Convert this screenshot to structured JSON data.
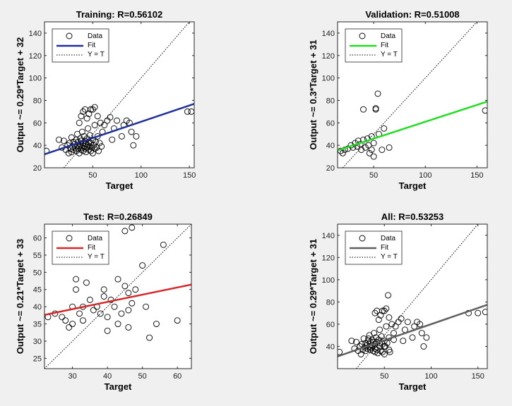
{
  "chart_data": [
    {
      "type": "scatter",
      "title": "Training: R=0.56102",
      "xlabel": "Target",
      "ylabel": "Output ~= 0.29*Target + 32",
      "xlim": [
        0,
        155
      ],
      "ylim": [
        20,
        150
      ],
      "xticks": [
        50,
        100,
        150
      ],
      "yticks": [
        20,
        40,
        60,
        80,
        100,
        120,
        140
      ],
      "grid": false,
      "legend_position": "top-left",
      "legend": [
        "Data",
        "Fit",
        "Y = T"
      ],
      "fit": {
        "slope": 0.29,
        "intercept": 32,
        "color": "#1f2f9c"
      },
      "points": [
        [
          2,
          35
        ],
        [
          15,
          45
        ],
        [
          18,
          38
        ],
        [
          20,
          44
        ],
        [
          22,
          36
        ],
        [
          24,
          40
        ],
        [
          25,
          33
        ],
        [
          26,
          42
        ],
        [
          27,
          37
        ],
        [
          28,
          47
        ],
        [
          28,
          34
        ],
        [
          29,
          39
        ],
        [
          30,
          43
        ],
        [
          30,
          36
        ],
        [
          31,
          41
        ],
        [
          32,
          38
        ],
        [
          33,
          45
        ],
        [
          33,
          35
        ],
        [
          34,
          40
        ],
        [
          34,
          50
        ],
        [
          35,
          37
        ],
        [
          35,
          43
        ],
        [
          36,
          39
        ],
        [
          36,
          33
        ],
        [
          37,
          46
        ],
        [
          37,
          41
        ],
        [
          38,
          36
        ],
        [
          38,
          44
        ],
        [
          39,
          38
        ],
        [
          39,
          52
        ],
        [
          40,
          35
        ],
        [
          40,
          42
        ],
        [
          41,
          39
        ],
        [
          41,
          48
        ],
        [
          42,
          37
        ],
        [
          42,
          44
        ],
        [
          43,
          34
        ],
        [
          43,
          41
        ],
        [
          44,
          46
        ],
        [
          44,
          38
        ],
        [
          45,
          55
        ],
        [
          45,
          40
        ],
        [
          46,
          36
        ],
        [
          46,
          43
        ],
        [
          47,
          39
        ],
        [
          47,
          49
        ],
        [
          48,
          35
        ],
        [
          48,
          42
        ],
        [
          49,
          38
        ],
        [
          50,
          45
        ],
        [
          50,
          33
        ],
        [
          51,
          40
        ],
        [
          52,
          37
        ],
        [
          52,
          58
        ],
        [
          53,
          43
        ],
        [
          54,
          38
        ],
        [
          55,
          48
        ],
        [
          56,
          35
        ],
        [
          57,
          42
        ],
        [
          58,
          60
        ],
        [
          59,
          39
        ],
        [
          60,
          52
        ],
        [
          40,
          70
        ],
        [
          42,
          72
        ],
        [
          44,
          64
        ],
        [
          46,
          68
        ],
        [
          48,
          72
        ],
        [
          50,
          72
        ],
        [
          52,
          74
        ],
        [
          38,
          66
        ],
        [
          36,
          60
        ],
        [
          55,
          66
        ],
        [
          62,
          58
        ],
        [
          65,
          62
        ],
        [
          68,
          65
        ],
        [
          70,
          45
        ],
        [
          72,
          55
        ],
        [
          75,
          62
        ],
        [
          80,
          48
        ],
        [
          82,
          58
        ],
        [
          85,
          62
        ],
        [
          88,
          60
        ],
        [
          90,
          52
        ],
        [
          92,
          40
        ],
        [
          95,
          48
        ],
        [
          148,
          70
        ],
        [
          152,
          70
        ]
      ]
    },
    {
      "type": "scatter",
      "title": "Validation: R=0.51008",
      "xlabel": "Target",
      "ylabel": "Output ~= 0.3*Target + 31",
      "xlim": [
        15,
        160
      ],
      "ylim": [
        20,
        150
      ],
      "xticks": [
        50,
        100,
        150
      ],
      "yticks": [
        20,
        40,
        60,
        80,
        100,
        120,
        140
      ],
      "grid": false,
      "legend_position": "top-left",
      "legend": [
        "Data",
        "Fit",
        "Y = T"
      ],
      "fit": {
        "slope": 0.3,
        "intercept": 31,
        "color": "#22dd22"
      },
      "points": [
        [
          18,
          35
        ],
        [
          20,
          33
        ],
        [
          22,
          36
        ],
        [
          25,
          37
        ],
        [
          28,
          40
        ],
        [
          30,
          38
        ],
        [
          32,
          42
        ],
        [
          34,
          39
        ],
        [
          35,
          44
        ],
        [
          37,
          41
        ],
        [
          38,
          36
        ],
        [
          40,
          45
        ],
        [
          40,
          72
        ],
        [
          42,
          38
        ],
        [
          44,
          46
        ],
        [
          45,
          40
        ],
        [
          46,
          33
        ],
        [
          48,
          48
        ],
        [
          48,
          36
        ],
        [
          50,
          42
        ],
        [
          50,
          30
        ],
        [
          52,
          72
        ],
        [
          52,
          73
        ],
        [
          54,
          86
        ],
        [
          55,
          50
        ],
        [
          58,
          36
        ],
        [
          60,
          55
        ],
        [
          65,
          38
        ],
        [
          158,
          71
        ]
      ]
    },
    {
      "type": "scatter",
      "title": "Test: R=0.26849",
      "xlabel": "Target",
      "ylabel": "Output ~= 0.21*Target + 33",
      "xlim": [
        22,
        64
      ],
      "ylim": [
        22,
        64
      ],
      "xticks": [
        30,
        40,
        50,
        60
      ],
      "yticks": [
        25,
        30,
        35,
        40,
        45,
        50,
        55,
        60
      ],
      "grid": false,
      "legend_position": "top-left",
      "legend": [
        "Data",
        "Fit",
        "Y = T"
      ],
      "fit": {
        "slope": 0.21,
        "intercept": 33,
        "color": "#d62728"
      },
      "points": [
        [
          23,
          37
        ],
        [
          25,
          38
        ],
        [
          27,
          37
        ],
        [
          28,
          36
        ],
        [
          29,
          34
        ],
        [
          30,
          35
        ],
        [
          30,
          40
        ],
        [
          31,
          45
        ],
        [
          31,
          48
        ],
        [
          32,
          38
        ],
        [
          33,
          36
        ],
        [
          34,
          47
        ],
        [
          35,
          42
        ],
        [
          36,
          39
        ],
        [
          37,
          40
        ],
        [
          38,
          38
        ],
        [
          39,
          43
        ],
        [
          39,
          45
        ],
        [
          40,
          33
        ],
        [
          40,
          37
        ],
        [
          41,
          42
        ],
        [
          42,
          40
        ],
        [
          43,
          35
        ],
        [
          43,
          48
        ],
        [
          44,
          38
        ],
        [
          45,
          46
        ],
        [
          45,
          62
        ],
        [
          46,
          34
        ],
        [
          46,
          39
        ],
        [
          46,
          44
        ],
        [
          47,
          63
        ],
        [
          47,
          41
        ],
        [
          48,
          45
        ],
        [
          50,
          52
        ],
        [
          51,
          40
        ],
        [
          52,
          31
        ],
        [
          54,
          35
        ],
        [
          56,
          58
        ],
        [
          60,
          36
        ],
        [
          33,
          40
        ]
      ]
    },
    {
      "type": "scatter",
      "title": "All: R=0.53253",
      "xlabel": "Target",
      "ylabel": "Output ~= 0.29*Target + 31",
      "xlim": [
        0,
        160
      ],
      "ylim": [
        20,
        150
      ],
      "xticks": [
        50,
        100,
        150
      ],
      "yticks": [
        40,
        60,
        80,
        100,
        120,
        140
      ],
      "grid": false,
      "legend_position": "top-left",
      "legend": [
        "Data",
        "Fit",
        "Y = T"
      ],
      "fit": {
        "slope": 0.29,
        "intercept": 31,
        "color": "#606060"
      },
      "points": [
        [
          2,
          35
        ],
        [
          15,
          45
        ],
        [
          18,
          38
        ],
        [
          20,
          44
        ],
        [
          22,
          36
        ],
        [
          24,
          40
        ],
        [
          25,
          33
        ],
        [
          26,
          42
        ],
        [
          27,
          37
        ],
        [
          28,
          47
        ],
        [
          29,
          39
        ],
        [
          30,
          43
        ],
        [
          31,
          41
        ],
        [
          32,
          38
        ],
        [
          33,
          45
        ],
        [
          34,
          40
        ],
        [
          34,
          50
        ],
        [
          35,
          37
        ],
        [
          36,
          39
        ],
        [
          37,
          46
        ],
        [
          38,
          36
        ],
        [
          38,
          44
        ],
        [
          39,
          52
        ],
        [
          40,
          35
        ],
        [
          40,
          42
        ],
        [
          41,
          48
        ],
        [
          42,
          37
        ],
        [
          43,
          34
        ],
        [
          44,
          46
        ],
        [
          45,
          55
        ],
        [
          45,
          40
        ],
        [
          46,
          36
        ],
        [
          47,
          49
        ],
        [
          48,
          35
        ],
        [
          48,
          42
        ],
        [
          50,
          45
        ],
        [
          50,
          33
        ],
        [
          51,
          40
        ],
        [
          52,
          58
        ],
        [
          53,
          43
        ],
        [
          55,
          48
        ],
        [
          56,
          35
        ],
        [
          58,
          60
        ],
        [
          60,
          52
        ],
        [
          40,
          70
        ],
        [
          42,
          72
        ],
        [
          44,
          64
        ],
        [
          46,
          68
        ],
        [
          48,
          72
        ],
        [
          50,
          72
        ],
        [
          52,
          74
        ],
        [
          54,
          86
        ],
        [
          55,
          66
        ],
        [
          62,
          58
        ],
        [
          65,
          62
        ],
        [
          68,
          65
        ],
        [
          70,
          45
        ],
        [
          72,
          55
        ],
        [
          75,
          62
        ],
        [
          80,
          48
        ],
        [
          82,
          58
        ],
        [
          85,
          62
        ],
        [
          88,
          60
        ],
        [
          90,
          52
        ],
        [
          92,
          40
        ],
        [
          95,
          48
        ],
        [
          140,
          70
        ],
        [
          150,
          70
        ],
        [
          158,
          71
        ],
        [
          30,
          36
        ],
        [
          35,
          44
        ],
        [
          40,
          38
        ],
        [
          45,
          43
        ],
        [
          50,
          40
        ],
        [
          55,
          37
        ],
        [
          60,
          46
        ],
        [
          33,
          47
        ],
        [
          37,
          41
        ],
        [
          42,
          44
        ]
      ]
    }
  ]
}
